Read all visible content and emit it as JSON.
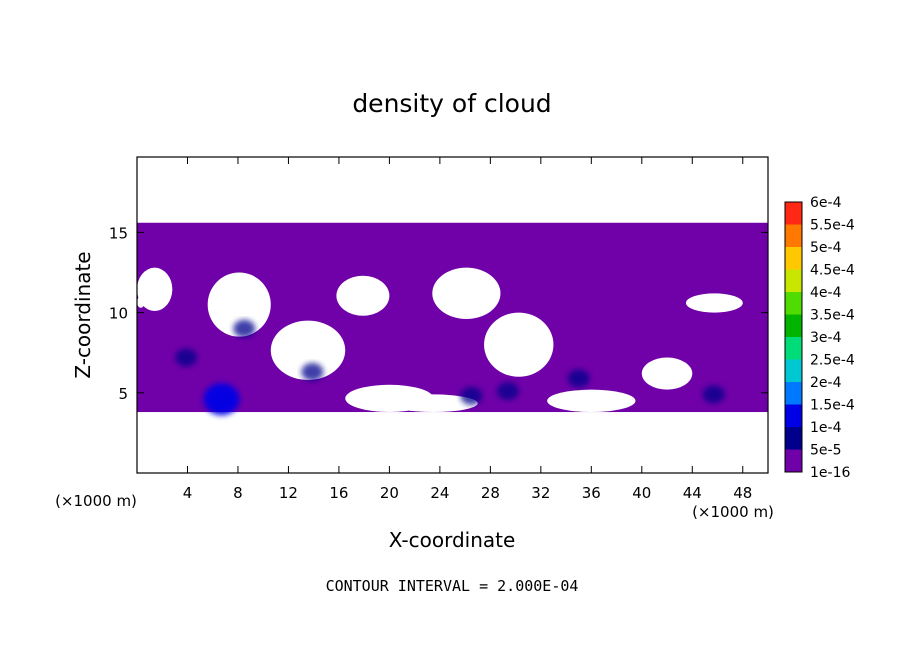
{
  "chart_data": {
    "type": "heatmap",
    "title": "density of cloud",
    "xlabel": "X-coordinate",
    "ylabel": "Z-coordinate",
    "x_unit": "(×1000 m)",
    "y_unit": "(×1000 m)",
    "xlim": [
      0,
      50
    ],
    "ylim": [
      0,
      19.7
    ],
    "x_ticks": [
      4,
      8,
      12,
      16,
      20,
      24,
      28,
      32,
      36,
      40,
      44,
      48
    ],
    "y_ticks": [
      5,
      10,
      15
    ],
    "footer": "CONTOUR INTERVAL = 2.000E-04",
    "colorbar": {
      "levels": [
        "1e-16",
        "5e-5",
        "1e-4",
        "1.5e-4",
        "2e-4",
        "2.5e-4",
        "3e-4",
        "3.5e-4",
        "4e-4",
        "4.5e-4",
        "5e-4",
        "5.5e-4",
        "6e-4"
      ],
      "colors": [
        "#7000a8",
        "#00008c",
        "#0000e6",
        "#0078ff",
        "#00c8d2",
        "#00dc78",
        "#00b400",
        "#50dc00",
        "#c8e600",
        "#ffc800",
        "#ff7800",
        "#ff2814",
        "#ff96a0"
      ]
    },
    "cloud_layer": {
      "z_bottom": 3.8,
      "z_top": 15.6,
      "level": "1e-16"
    },
    "gaps": [
      {
        "x": [
          5.6,
          10.6
        ],
        "z": [
          8.5,
          12.5
        ]
      },
      {
        "x": [
          10.6,
          16.5
        ],
        "z": [
          5.8,
          9.5
        ]
      },
      {
        "x": [
          15.8,
          20.0
        ],
        "z": [
          9.8,
          12.3
        ]
      },
      {
        "x": [
          0.0,
          2.8
        ],
        "z": [
          10.1,
          12.8
        ]
      },
      {
        "x": [
          16.5,
          23.5
        ],
        "z": [
          3.8,
          5.5
        ]
      },
      {
        "x": [
          20.0,
          27.0
        ],
        "z": [
          3.8,
          4.9
        ]
      },
      {
        "x": [
          23.4,
          28.8
        ],
        "z": [
          9.6,
          12.8
        ]
      },
      {
        "x": [
          27.5,
          33.0
        ],
        "z": [
          6.0,
          10.0
        ]
      },
      {
        "x": [
          32.5,
          39.5
        ],
        "z": [
          3.8,
          5.2
        ]
      },
      {
        "x": [
          40.0,
          44.0
        ],
        "z": [
          5.2,
          7.2
        ]
      },
      {
        "x": [
          43.5,
          48.0
        ],
        "z": [
          10.0,
          11.2
        ]
      },
      {
        "x": [
          0.0,
          0.6
        ],
        "z": [
          10.3,
          11.0
        ]
      }
    ],
    "patches": [
      {
        "x": 3.9,
        "z": 7.2,
        "level": "5e-5"
      },
      {
        "x": 8.5,
        "z": 9.0,
        "level": "5e-5"
      },
      {
        "x": 13.9,
        "z": 6.3,
        "level": "5e-5"
      },
      {
        "x": 26.5,
        "z": 4.8,
        "level": "5e-5"
      },
      {
        "x": 29.4,
        "z": 5.1,
        "level": "5e-5"
      },
      {
        "x": 35.0,
        "z": 5.9,
        "level": "5e-5"
      },
      {
        "x": 45.7,
        "z": 4.9,
        "level": "5e-5"
      },
      {
        "x": 6.7,
        "z": 4.6,
        "level": "1e-4"
      }
    ]
  }
}
